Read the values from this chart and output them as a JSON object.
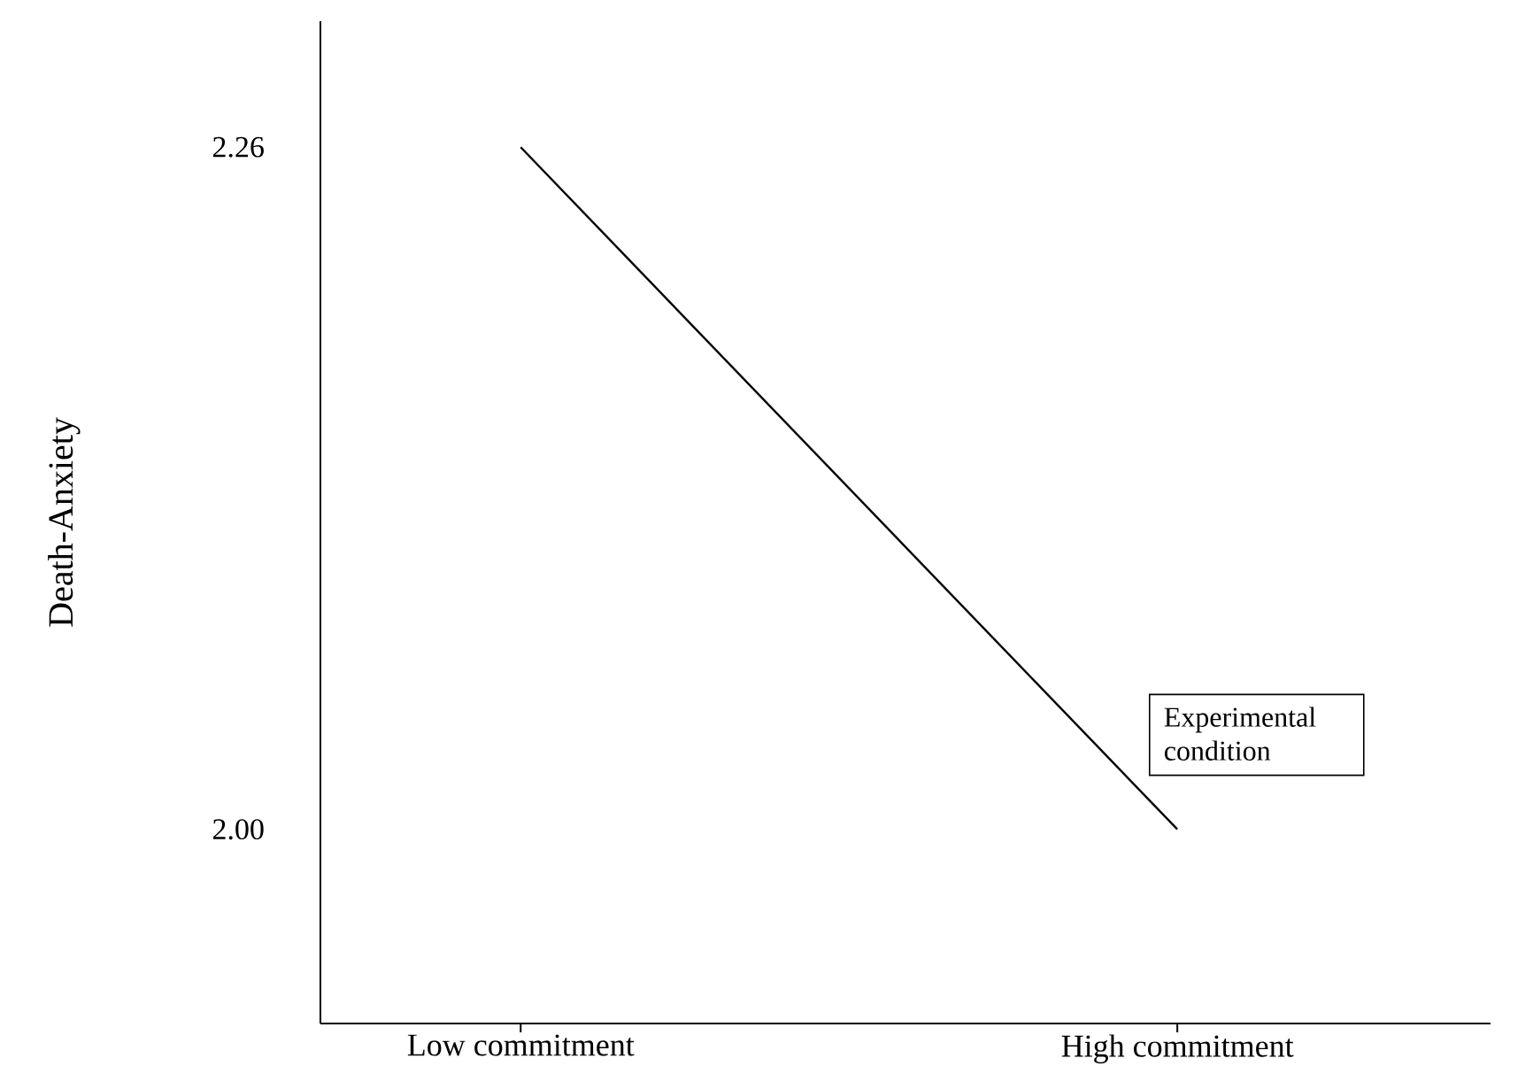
{
  "chart_data": {
    "type": "line",
    "ylabel": "Death-Anxiety",
    "categories": [
      "Low commitment",
      "High commitment"
    ],
    "series": [
      {
        "name": "Experimental condition",
        "color": "#000000",
        "values": [
          2.26,
          2.0
        ]
      }
    ],
    "ylim": [
      1.926,
      2.308
    ],
    "yticks": [
      {
        "value": 2.0,
        "label": "2.00"
      },
      {
        "value": 2.26,
        "label": "2.26"
      }
    ],
    "legend": "bottom right",
    "grid": false,
    "marker": "none",
    "line_style": "solid"
  }
}
